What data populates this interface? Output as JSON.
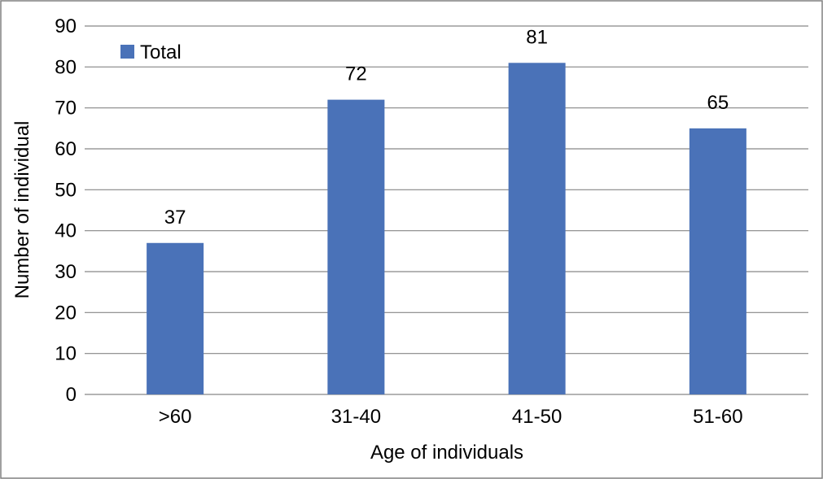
{
  "chart_data": {
    "type": "bar",
    "title": "",
    "categories": [
      ">60",
      "31-40",
      "41-50",
      "51-60"
    ],
    "series": [
      {
        "name": "Total",
        "values": [
          37,
          72,
          81,
          65
        ],
        "color": "#4A72B8"
      }
    ],
    "data_labels": [
      "37",
      "72",
      "81",
      "65"
    ],
    "xlabel": "Age of individuals",
    "ylabel": "Number of individual",
    "ylim": [
      0,
      90
    ],
    "yticks": [
      0,
      10,
      20,
      30,
      40,
      50,
      60,
      70,
      80,
      90
    ],
    "ytick_labels": [
      "0",
      "10",
      "20",
      "30",
      "40",
      "50",
      "60",
      "70",
      "80",
      "90"
    ],
    "grid": true,
    "legend": {
      "position": "top-left",
      "entries": [
        "Total"
      ]
    }
  },
  "colors": {
    "bar": "#4A72B8",
    "grid": "#868686",
    "border": "#808080",
    "text": "#000000"
  }
}
